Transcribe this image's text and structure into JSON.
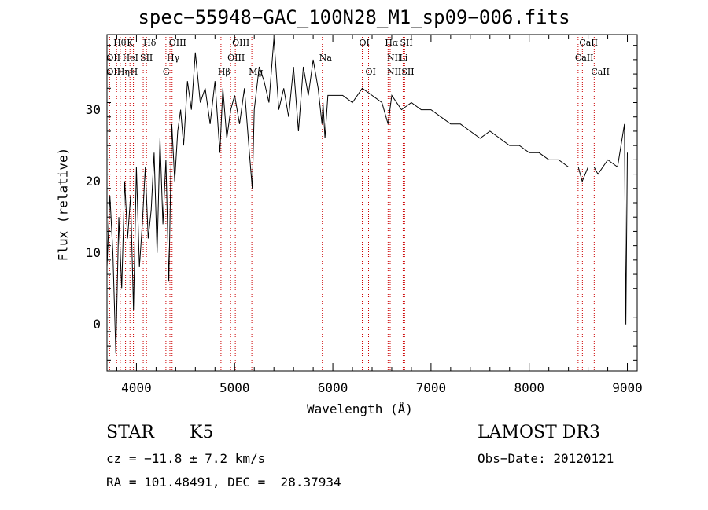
{
  "chart_data": {
    "type": "line",
    "title": "spec−55948−GAC_100N28_M1_sp09−006.fits",
    "xlabel": "Wavelength (Å)",
    "ylabel": "Flux (relative)",
    "xlim": [
      3700,
      9100
    ],
    "ylim": [
      -6.5,
      40.5
    ],
    "xticks": [
      4000,
      5000,
      6000,
      7000,
      8000,
      9000
    ],
    "yticks": [
      0,
      10,
      20,
      30
    ],
    "series": [
      {
        "name": "flux",
        "x": [
          3700,
          3730,
          3760,
          3790,
          3820,
          3850,
          3880,
          3910,
          3940,
          3970,
          4000,
          4030,
          4060,
          4090,
          4120,
          4150,
          4180,
          4210,
          4240,
          4270,
          4300,
          4330,
          4360,
          4390,
          4420,
          4450,
          4480,
          4520,
          4560,
          4600,
          4650,
          4700,
          4750,
          4800,
          4850,
          4880,
          4920,
          4960,
          5000,
          5050,
          5100,
          5150,
          5180,
          5200,
          5250,
          5300,
          5350,
          5400,
          5450,
          5500,
          5550,
          5600,
          5650,
          5700,
          5750,
          5800,
          5850,
          5890,
          5900,
          5920,
          5950,
          6000,
          6100,
          6200,
          6300,
          6400,
          6500,
          6563,
          6600,
          6700,
          6800,
          6900,
          7000,
          7100,
          7200,
          7300,
          7400,
          7500,
          7600,
          7700,
          7800,
          7900,
          8000,
          8100,
          8200,
          8300,
          8400,
          8500,
          8540,
          8600,
          8660,
          8700,
          8800,
          8900,
          8970,
          8985,
          9000
        ],
        "y": [
          8,
          18,
          10,
          -4,
          15,
          5,
          20,
          12,
          18,
          2,
          22,
          8,
          14,
          22,
          12,
          16,
          24,
          10,
          26,
          14,
          23,
          6,
          28,
          20,
          27,
          30,
          25,
          34,
          30,
          38,
          31,
          33,
          28,
          34,
          24,
          33,
          26,
          30,
          32,
          28,
          33,
          24,
          19,
          30,
          36,
          34,
          31,
          40,
          30,
          33,
          29,
          36,
          27,
          36,
          32,
          37,
          33,
          28,
          31,
          26,
          32,
          32,
          32,
          31,
          33,
          32,
          31,
          28,
          32,
          30,
          31,
          30,
          30,
          29,
          28,
          28,
          27,
          26,
          27,
          26,
          25,
          25,
          24,
          24,
          23,
          23,
          22,
          22,
          20,
          22,
          22,
          21,
          23,
          22,
          28,
          0,
          24
        ]
      }
    ],
    "line_labels": [
      {
        "label": "Hθ",
        "wavelength": 3798,
        "row": 0
      },
      {
        "label": "OII",
        "wavelength": 3727,
        "row": 1
      },
      {
        "label": "OII",
        "wavelength": 3727,
        "row": 2
      },
      {
        "label": "K",
        "wavelength": 3934,
        "row": 0
      },
      {
        "label": "HeI",
        "wavelength": 3889,
        "row": 1
      },
      {
        "label": "Hη",
        "wavelength": 3835,
        "row": 2
      },
      {
        "label": "Hδ",
        "wavelength": 4102,
        "row": 0
      },
      {
        "label": "SII",
        "wavelength": 4069,
        "row": 1
      },
      {
        "label": "H",
        "wavelength": 3969,
        "row": 2
      },
      {
        "label": "OIII",
        "wavelength": 4363,
        "row": 0
      },
      {
        "label": "Hγ",
        "wavelength": 4341,
        "row": 1
      },
      {
        "label": "G",
        "wavelength": 4300,
        "row": 2
      },
      {
        "label": "OIII",
        "wavelength": 5007,
        "row": 0
      },
      {
        "label": "OIII",
        "wavelength": 4959,
        "row": 1
      },
      {
        "label": "Hβ",
        "wavelength": 4861,
        "row": 2
      },
      {
        "label": "Mg",
        "wavelength": 5175,
        "row": 2
      },
      {
        "label": "Na",
        "wavelength": 5893,
        "row": 1
      },
      {
        "label": "OI",
        "wavelength": 6300,
        "row": 0
      },
      {
        "label": "OI",
        "wavelength": 6364,
        "row": 2
      },
      {
        "label": "Hα",
        "wavelength": 6563,
        "row": 0
      },
      {
        "label": "SII",
        "wavelength": 6716,
        "row": 0
      },
      {
        "label": "NII",
        "wavelength": 6584,
        "row": 1
      },
      {
        "label": "Li",
        "wavelength": 6708,
        "row": 1
      },
      {
        "label": "NII",
        "wavelength": 6584,
        "row": 2
      },
      {
        "label": "SII",
        "wavelength": 6731,
        "row": 2
      },
      {
        "label": "CaII",
        "wavelength": 8542,
        "row": 0
      },
      {
        "label": "CaII",
        "wavelength": 8498,
        "row": 1
      },
      {
        "label": "CaII",
        "wavelength": 8662,
        "row": 2
      }
    ],
    "line_markers": [
      3727,
      3798,
      3835,
      3889,
      3934,
      3969,
      4069,
      4102,
      4300,
      4341,
      4363,
      4861,
      4959,
      5007,
      5175,
      5893,
      6300,
      6364,
      6563,
      6584,
      6716,
      6731,
      8498,
      8542,
      8662
    ]
  },
  "info": {
    "object_class": "STAR",
    "subclass": "K5",
    "survey": "LAMOST DR3",
    "redshift": "cz = −11.8 ± 7.2 km/s",
    "obs_date": "Obs−Date: 20120121",
    "coords": "RA = 101.48491, DEC =  28.37934"
  },
  "colors": {
    "line": "#000000",
    "marker": "#cc0000"
  }
}
